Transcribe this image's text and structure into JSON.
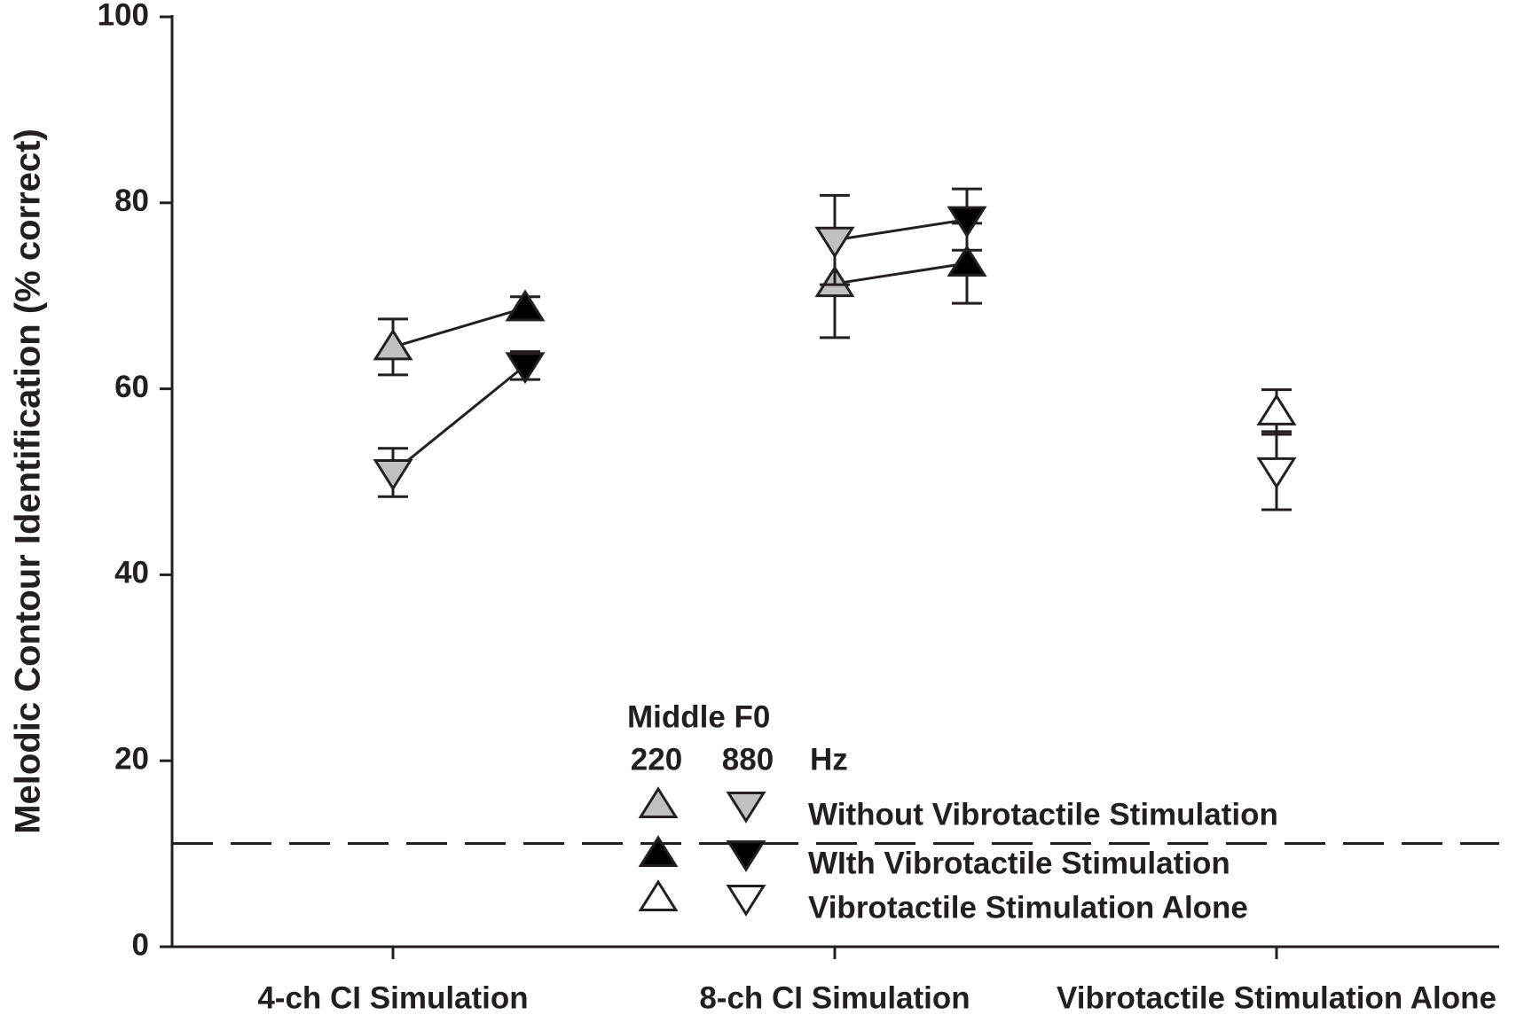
{
  "chart_data": {
    "type": "errorbar",
    "y_label": "Melodic Contour Identification (% correct)",
    "categories": [
      "4-ch CI Simulation",
      "8-ch CI Simulation",
      "Vibrotactile Stimulation Alone"
    ],
    "ylim": [
      0,
      100
    ],
    "yticks": [
      0,
      20,
      40,
      60,
      80,
      100
    ],
    "reference_line": 11.1,
    "legend": {
      "title": "Middle F0",
      "columns": [
        "220",
        "880",
        "Hz"
      ]
    },
    "series": [
      {
        "name": "Without Vibrotactile Stimulation",
        "color": "#c0c0c0",
        "by_f0": [
          {
            "values": [
              64.5,
              71.3,
              null
            ],
            "errors": [
              3.0,
              5.8,
              null
            ]
          },
          {
            "values": [
              51.0,
              76.0,
              null
            ],
            "errors": [
              2.6,
              4.8,
              null
            ]
          }
        ]
      },
      {
        "name": "WIth Vibrotactile Stimulation",
        "color": "#000000",
        "by_f0": [
          {
            "values": [
              68.7,
              73.5,
              null
            ],
            "errors": [
              1.2,
              4.3,
              null
            ]
          },
          {
            "values": [
              62.5,
              78.2,
              null
            ],
            "errors": [
              1.5,
              3.3,
              null
            ]
          }
        ]
      },
      {
        "name": "Vibrotactile Stimulation Alone",
        "color": "#ffffff",
        "by_f0": [
          {
            "values": [
              null,
              null,
              57.5
            ],
            "errors": [
              null,
              null,
              2.4
            ]
          },
          {
            "values": [
              null,
              null,
              51.2
            ],
            "errors": [
              null,
              null,
              4.2
            ]
          }
        ]
      }
    ]
  }
}
